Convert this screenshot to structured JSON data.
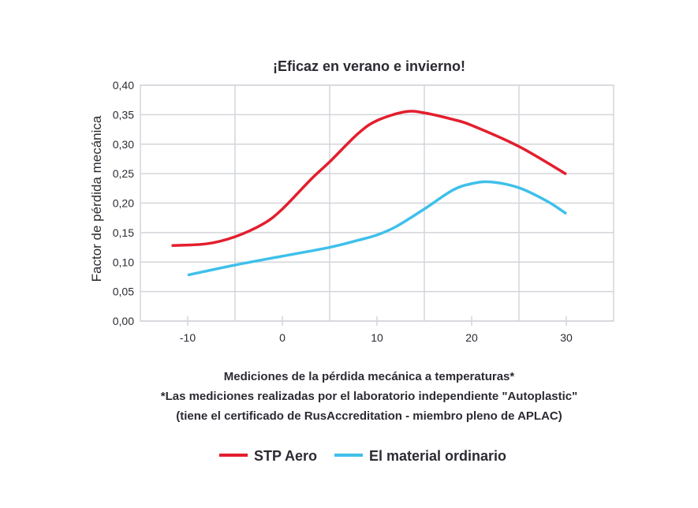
{
  "chart_data": {
    "type": "line",
    "title": "¡Eficaz en verano e invierno!",
    "ylabel": "Factor de pérdida mecánica",
    "xlabel": "Mediciones de la pérdida mecánica a temperaturas*",
    "notes": [
      "*Las mediciones realizadas por el laboratorio independiente \"Autoplastic\"",
      "(tiene el certificado de RusAccreditation - miembro pleno de APLAC)"
    ],
    "xlim": [
      -15,
      35
    ],
    "ylim": [
      0,
      0.4
    ],
    "xticks": [
      -10,
      0,
      10,
      20,
      30
    ],
    "xtick_labels": [
      "-10",
      "0",
      "10",
      "20",
      "30"
    ],
    "yticks": [
      0,
      0.05,
      0.1,
      0.15,
      0.2,
      0.25,
      0.3,
      0.35,
      0.4
    ],
    "ytick_labels": [
      "0,00",
      "0,05",
      "0,10",
      "0,15",
      "0,20",
      "0,25",
      "0,30",
      "0,35",
      "0,40"
    ],
    "x_gridlines": [
      -5,
      5,
      15,
      25
    ],
    "legend_position": "bottom",
    "series": [
      {
        "name": "STP Aero",
        "color": "#e31e2d",
        "x": [
          -11.7,
          -8,
          -5,
          -2,
          0,
          3,
          5,
          8,
          10,
          13,
          15,
          18,
          20,
          25,
          30
        ],
        "y": [
          0.128,
          0.131,
          0.143,
          0.165,
          0.19,
          0.24,
          0.27,
          0.318,
          0.34,
          0.355,
          0.353,
          0.342,
          0.332,
          0.296,
          0.249
        ]
      },
      {
        "name": "El material ordinario",
        "color": "#3fc0ea",
        "x": [
          -10,
          -5,
          0,
          5,
          8,
          10,
          12,
          15,
          18,
          20,
          22,
          25,
          28,
          30
        ],
        "y": [
          0.078,
          0.095,
          0.11,
          0.125,
          0.137,
          0.146,
          0.16,
          0.19,
          0.222,
          0.233,
          0.236,
          0.226,
          0.203,
          0.182
        ]
      }
    ]
  }
}
